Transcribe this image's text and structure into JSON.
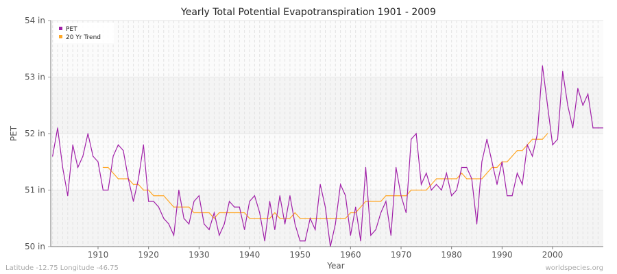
{
  "chart_data": {
    "type": "line",
    "title": "Yearly Total Potential Evapotranspiration 1901 - 2009",
    "xlabel": "Year",
    "ylabel": "PET",
    "xlim": [
      1900.6,
      2010
    ],
    "ylim": [
      50,
      54
    ],
    "xticks": [
      1910,
      1920,
      1930,
      1940,
      1950,
      1960,
      1970,
      1980,
      1990,
      2000
    ],
    "yticks": [
      {
        "v": 50,
        "label": "50 in"
      },
      {
        "v": 51,
        "label": "51 in"
      },
      {
        "v": 52,
        "label": "52 in"
      },
      {
        "v": 53,
        "label": "53 in"
      },
      {
        "v": 54,
        "label": "54 in"
      }
    ],
    "legend_position": "top-left",
    "series": [
      {
        "name": "PET",
        "color": "#a020a8",
        "start": 1901,
        "values": [
          51.6,
          52.1,
          51.4,
          50.9,
          51.8,
          51.4,
          51.6,
          52.0,
          51.6,
          51.5,
          51.0,
          51.0,
          51.6,
          51.8,
          51.7,
          51.2,
          50.8,
          51.2,
          51.8,
          50.8,
          50.8,
          50.7,
          50.5,
          50.4,
          50.2,
          51.0,
          50.5,
          50.4,
          50.8,
          50.9,
          50.4,
          50.3,
          50.6,
          50.2,
          50.4,
          50.8,
          50.7,
          50.7,
          50.3,
          50.8,
          50.9,
          50.6,
          50.1,
          50.8,
          50.3,
          50.9,
          50.4,
          50.9,
          50.4,
          50.1,
          50.1,
          50.5,
          50.3,
          51.1,
          50.7,
          50.0,
          50.4,
          51.1,
          50.9,
          50.2,
          50.7,
          50.1,
          51.4,
          50.2,
          50.3,
          50.6,
          50.8,
          50.2,
          51.4,
          50.9,
          50.6,
          51.9,
          52.0,
          51.1,
          51.3,
          51.0,
          51.1,
          51.0,
          51.3,
          50.9,
          51.0,
          51.4,
          51.4,
          51.2,
          50.4,
          51.5,
          51.9,
          51.5,
          51.1,
          51.5,
          50.9,
          50.9,
          51.3,
          51.1,
          51.8,
          51.6,
          52.0,
          53.2,
          52.5,
          51.8,
          51.9,
          53.1,
          52.5,
          52.1,
          52.8,
          52.5,
          52.7,
          52.1,
          52.1
        ]
      },
      {
        "name": "20 Yr Trend",
        "color": "#ffa726",
        "start": 1911,
        "values": [
          51.4,
          51.4,
          51.3,
          51.2,
          51.2,
          51.2,
          51.1,
          51.1,
          51.0,
          51.0,
          50.9,
          50.9,
          50.9,
          50.8,
          50.7,
          50.7,
          50.7,
          50.7,
          50.6,
          50.6,
          50.6,
          50.6,
          50.5,
          50.6,
          50.6,
          50.6,
          50.6,
          50.6,
          50.6,
          50.5,
          50.5,
          50.5,
          50.5,
          50.5,
          50.6,
          50.5,
          50.5,
          50.5,
          50.6,
          50.5,
          50.5,
          50.5,
          50.5,
          50.5,
          50.5,
          50.5,
          50.5,
          50.5,
          50.5,
          50.6,
          50.6,
          50.7,
          50.8,
          50.8,
          50.8,
          50.8,
          50.9,
          50.9,
          50.9,
          50.9,
          50.9,
          51.0,
          51.0,
          51.0,
          51.0,
          51.1,
          51.2,
          51.2,
          51.2,
          51.2,
          51.2,
          51.3,
          51.2,
          51.2,
          51.2,
          51.2,
          51.3,
          51.4,
          51.4,
          51.5,
          51.5,
          51.6,
          51.7,
          51.7,
          51.8,
          51.9,
          51.9,
          51.9,
          52.0
        ]
      }
    ]
  },
  "footer": {
    "left": "Latitude -12.75 Longitude -46.75",
    "right": "worldspecies.org"
  }
}
